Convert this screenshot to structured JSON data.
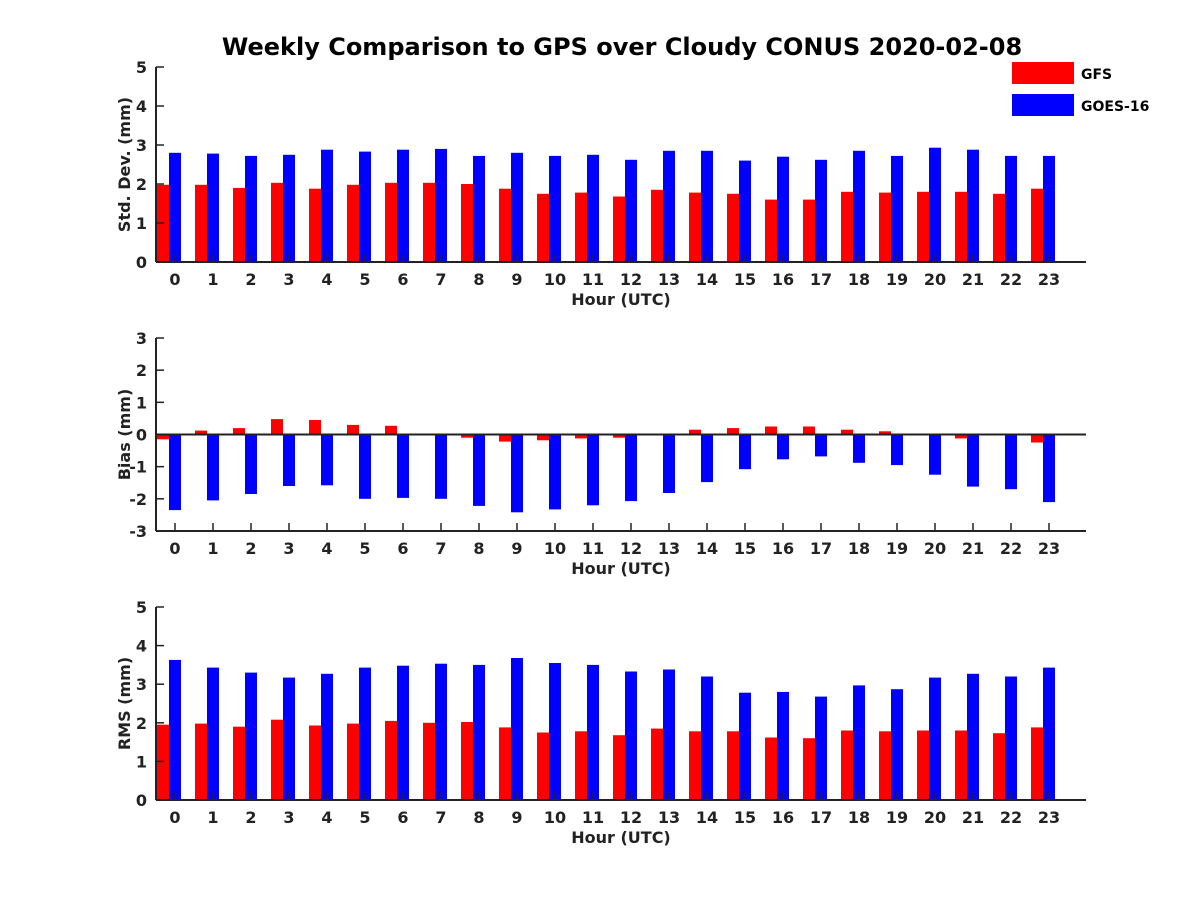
{
  "chart_data": {
    "title": "Weekly Comparison to GPS over Cloudy CONUS 2020-02-08",
    "legend": {
      "placement": "top-right",
      "entries": [
        "GFS",
        "GOES-16"
      ]
    },
    "colors": {
      "GFS": "#ff0000",
      "GOES-16": "#0000ff",
      "axis": "#222222"
    },
    "panels": [
      {
        "type": "bar",
        "xlabel": "Hour (UTC)",
        "ylabel": "Std. Dev. (mm)",
        "ylim": [
          0,
          5
        ],
        "yticks": [
          0,
          1,
          2,
          3,
          4,
          5
        ],
        "categories": [
          "0",
          "1",
          "2",
          "3",
          "4",
          "5",
          "6",
          "7",
          "8",
          "9",
          "10",
          "11",
          "12",
          "13",
          "14",
          "15",
          "16",
          "17",
          "18",
          "19",
          "20",
          "21",
          "22",
          "23"
        ],
        "series": [
          {
            "name": "GFS",
            "values": [
              1.98,
              1.98,
              1.9,
              2.03,
              1.88,
              1.98,
              2.03,
              2.03,
              2.0,
              1.88,
              1.75,
              1.78,
              1.68,
              1.85,
              1.78,
              1.75,
              1.6,
              1.6,
              1.8,
              1.78,
              1.8,
              1.8,
              1.75,
              1.88
            ]
          },
          {
            "name": "GOES-16",
            "values": [
              2.8,
              2.78,
              2.72,
              2.75,
              2.88,
              2.83,
              2.88,
              2.9,
              2.72,
              2.8,
              2.72,
              2.75,
              2.62,
              2.85,
              2.85,
              2.6,
              2.7,
              2.62,
              2.85,
              2.72,
              2.93,
              2.88,
              2.72,
              2.72
            ]
          }
        ]
      },
      {
        "type": "bar",
        "xlabel": "Hour (UTC)",
        "ylabel": "Bias (mm)",
        "ylim": [
          -3,
          3
        ],
        "yticks": [
          -3,
          -2,
          -1,
          0,
          1,
          2,
          3
        ],
        "categories": [
          "0",
          "1",
          "2",
          "3",
          "4",
          "5",
          "6",
          "7",
          "8",
          "9",
          "10",
          "11",
          "12",
          "13",
          "14",
          "15",
          "16",
          "17",
          "18",
          "19",
          "20",
          "21",
          "22",
          "23"
        ],
        "series": [
          {
            "name": "GFS",
            "values": [
              -0.15,
              0.12,
              0.2,
              0.48,
              0.45,
              0.3,
              0.27,
              0.0,
              -0.1,
              -0.22,
              -0.18,
              -0.12,
              -0.1,
              0.0,
              0.15,
              0.2,
              0.25,
              0.25,
              0.15,
              0.1,
              0.0,
              -0.12,
              0.0,
              -0.25
            ]
          },
          {
            "name": "GOES-16",
            "values": [
              -2.35,
              -2.05,
              -1.85,
              -1.6,
              -1.58,
              -2.0,
              -1.97,
              -2.0,
              -2.22,
              -2.42,
              -2.33,
              -2.2,
              -2.07,
              -1.82,
              -1.48,
              -1.08,
              -0.77,
              -0.68,
              -0.88,
              -0.95,
              -1.25,
              -1.62,
              -1.7,
              -2.1
            ]
          }
        ]
      },
      {
        "type": "bar",
        "xlabel": "Hour (UTC)",
        "ylabel": "RMS (mm)",
        "ylim": [
          0,
          5
        ],
        "yticks": [
          0,
          1,
          2,
          3,
          4,
          5
        ],
        "categories": [
          "0",
          "1",
          "2",
          "3",
          "4",
          "5",
          "6",
          "7",
          "8",
          "9",
          "10",
          "11",
          "12",
          "13",
          "14",
          "15",
          "16",
          "17",
          "18",
          "19",
          "20",
          "21",
          "22",
          "23"
        ],
        "series": [
          {
            "name": "GFS",
            "values": [
              1.95,
              1.98,
              1.9,
              2.08,
              1.93,
              1.98,
              2.05,
              2.0,
              2.02,
              1.88,
              1.75,
              1.78,
              1.68,
              1.85,
              1.78,
              1.78,
              1.62,
              1.6,
              1.8,
              1.78,
              1.8,
              1.8,
              1.73,
              1.88
            ]
          },
          {
            "name": "GOES-16",
            "values": [
              3.63,
              3.43,
              3.3,
              3.17,
              3.27,
              3.43,
              3.48,
              3.53,
              3.5,
              3.68,
              3.55,
              3.5,
              3.33,
              3.38,
              3.2,
              2.78,
              2.8,
              2.68,
              2.97,
              2.87,
              3.17,
              3.27,
              3.2,
              3.43
            ]
          }
        ]
      }
    ]
  }
}
